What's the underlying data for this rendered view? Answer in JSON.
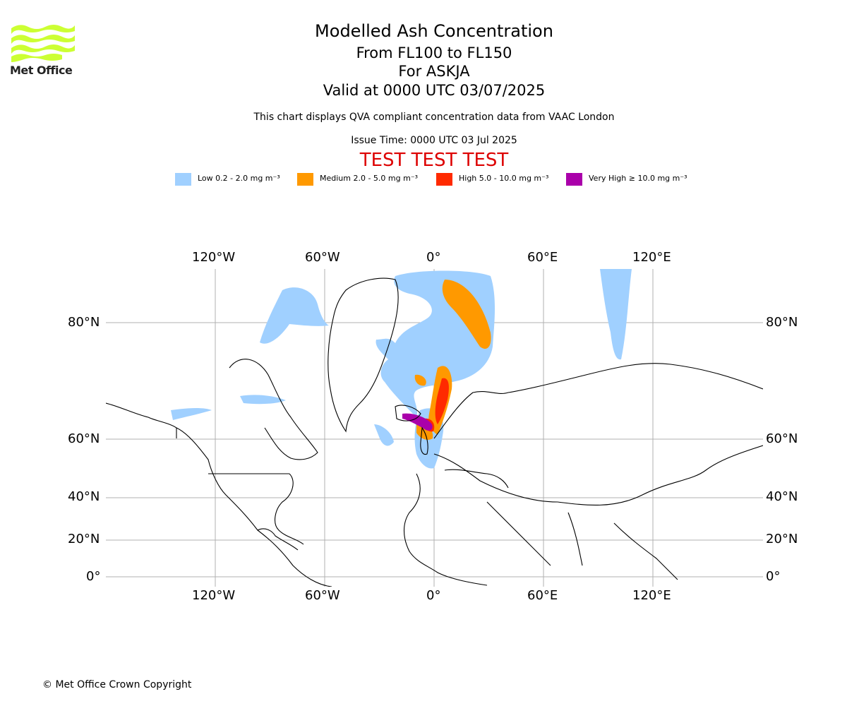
{
  "logo": {
    "text": "Met Office"
  },
  "header": {
    "title": "Modelled Ash Concentration",
    "levels": "From FL100 to FL150",
    "volcano": "For ASKJA",
    "valid": "Valid at 0000 UTC 03/07/2025",
    "subtitle": "This chart displays QVA compliant concentration data from VAAC London",
    "issue_time": "Issue Time: 0000 UTC 03 Jul 2025",
    "test_banner": "TEST TEST TEST"
  },
  "legend": [
    {
      "label": "Low 0.2 - 2.0 mg m⁻³",
      "color": "#a0d0ff"
    },
    {
      "label": "Medium 2.0 - 5.0 mg m⁻³",
      "color": "#ff9900"
    },
    {
      "label": "High 5.0 - 10.0 mg m⁻³",
      "color": "#ff2a00"
    },
    {
      "label": "Very High ≥ 10.0 mg m⁻³",
      "color": "#aa00aa"
    }
  ],
  "map": {
    "lon_labels": [
      "120°W",
      "60°W",
      "0°",
      "60°E",
      "120°E"
    ],
    "lat_labels": [
      "80°N",
      "60°N",
      "40°N",
      "20°N",
      "0°"
    ],
    "lon_ticks": [
      -120,
      -60,
      0,
      60,
      120
    ],
    "lat_ticks": [
      80,
      60,
      40,
      20,
      0
    ],
    "lon_range": [
      -180,
      180
    ],
    "grid": true
  },
  "footer": {
    "copyright": "© Met Office Crown Copyright"
  }
}
